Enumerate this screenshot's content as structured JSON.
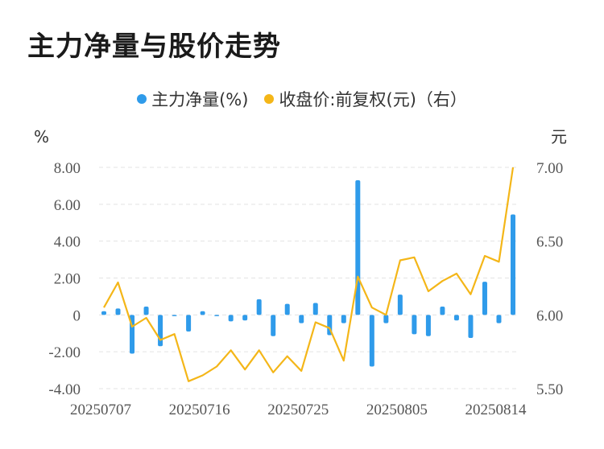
{
  "title": "主力净量与股价走势",
  "legend": {
    "series1": "主力净量(%)",
    "series2": "收盘价:前复权(元)（右）"
  },
  "axis": {
    "left_unit": "%",
    "right_unit": "元"
  },
  "colors": {
    "bar": "#2f9bea",
    "line": "#f4b618",
    "grid": "#e3e3e3"
  },
  "chart_data": {
    "type": "bar",
    "title": "主力净量与股价走势",
    "x_tick_labels": [
      "20250707",
      "20250716",
      "20250725",
      "20250805",
      "20250814"
    ],
    "y_left": {
      "label": "%",
      "ylim": [
        -4,
        8
      ],
      "ticks": [
        "8.00",
        "6.00",
        "4.00",
        "2.00",
        "0",
        "-2.00",
        "-4.00"
      ]
    },
    "y_right": {
      "label": "元",
      "ylim": [
        5.5,
        7.0
      ],
      "ticks": [
        "7.00",
        "6.50",
        "6.00",
        "5.50"
      ]
    },
    "series": [
      {
        "name": "主力净量(%)",
        "type": "bar",
        "axis": "left",
        "values": [
          0.2,
          0.35,
          -2.1,
          0.45,
          -1.7,
          -0.05,
          -0.9,
          0.2,
          -0.05,
          -0.35,
          -0.3,
          0.85,
          -1.15,
          0.6,
          -0.45,
          0.65,
          -1.1,
          -0.45,
          7.3,
          -2.8,
          -0.45,
          1.1,
          -1.05,
          -1.15,
          0.45,
          -0.3,
          -1.25,
          1.8,
          -0.45,
          5.45
        ]
      },
      {
        "name": "收盘价:前复权(元)（右）",
        "type": "line",
        "axis": "right",
        "values": [
          6.05,
          6.22,
          5.92,
          5.98,
          5.83,
          5.87,
          5.55,
          5.59,
          5.65,
          5.76,
          5.63,
          5.76,
          5.61,
          5.72,
          5.62,
          5.95,
          5.91,
          5.69,
          6.26,
          6.05,
          6.0,
          6.37,
          6.39,
          6.16,
          6.23,
          6.28,
          6.14,
          6.4,
          6.36,
          7.0
        ]
      }
    ]
  }
}
